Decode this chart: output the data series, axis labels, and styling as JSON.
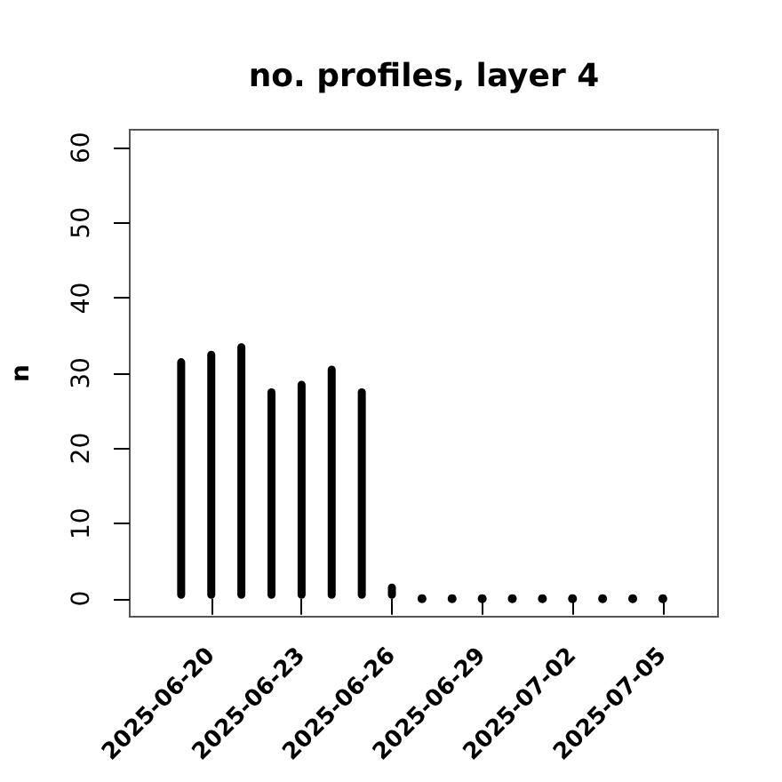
{
  "chart_data": {
    "type": "bar",
    "title": "no. profiles, layer 4",
    "ylabel": "n",
    "x": [
      "2025-06-19",
      "2025-06-20",
      "2025-06-21",
      "2025-06-22",
      "2025-06-23",
      "2025-06-24",
      "2025-06-25",
      "2025-06-26",
      "2025-06-27",
      "2025-06-28",
      "2025-06-29",
      "2025-06-30",
      "2025-07-01",
      "2025-07-02",
      "2025-07-03",
      "2025-07-04",
      "2025-07-05"
    ],
    "series": [
      {
        "color": "#000000",
        "values": [
          32,
          33,
          34,
          28,
          29,
          31,
          28,
          2,
          null,
          null,
          null,
          null,
          null,
          null,
          null,
          null,
          null
        ]
      },
      {
        "type": "scatter",
        "color": "#000000",
        "values": [
          null,
          null,
          null,
          null,
          null,
          null,
          null,
          null,
          0,
          0,
          0,
          0,
          0,
          0,
          0,
          0,
          0
        ]
      }
    ],
    "marker": "circle",
    "xlim": [
      "2025-06-17T07:00",
      "2025-07-06T20:00"
    ],
    "xticks": [
      "2025-06-20",
      "2025-06-23",
      "2025-06-26",
      "2025-06-29",
      "2025-07-02",
      "2025-07-05"
    ],
    "ylim": [
      -2.4,
      62.4
    ],
    "yticks": [
      0,
      10,
      20,
      30,
      40,
      50,
      60
    ]
  }
}
